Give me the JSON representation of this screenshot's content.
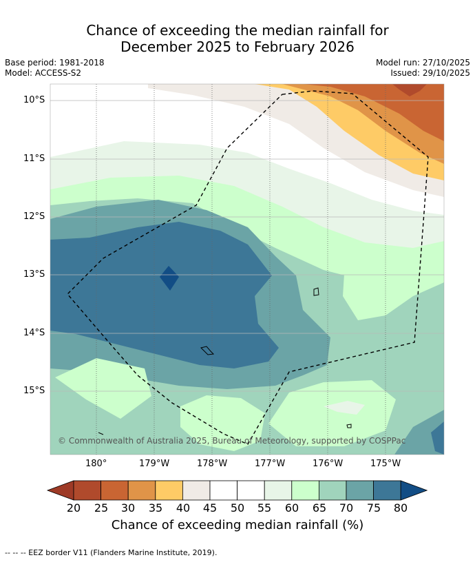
{
  "title_line1": "Chance of exceeding the median rainfall for",
  "title_line2": "December 2025 to February 2026",
  "base_period": "Base period: 1981-2018",
  "model": "Model: ACCESS-S2",
  "model_run": "Model run: 27/10/2025",
  "issued": "Issued: 29/10/2025",
  "copyright": "© Commonwealth of Australia 2025, Bureau of Meteorology, supported by COSPPac",
  "lat_labels": [
    "10°S",
    "11°S",
    "12°S",
    "13°S",
    "14°S",
    "15°S"
  ],
  "lon_labels": [
    "180°",
    "179°W",
    "178°W",
    "177°W",
    "176°W",
    "175°W"
  ],
  "colorbar": {
    "ticks": [
      "20",
      "25",
      "30",
      "35",
      "40",
      "45",
      "50",
      "55",
      "60",
      "65",
      "70",
      "75",
      "80"
    ],
    "colors": [
      "#9e3a26",
      "#b04a2c",
      "#c96533",
      "#e09448",
      "#fecb66",
      "#f0ebe6",
      "#ffffff",
      "#ffffff",
      "#e8f5e8",
      "#ccffcc",
      "#a0d4bc",
      "#6ba4a6",
      "#3d7797",
      "#124d85"
    ],
    "title": "Chance of exceeding median rainfall (%)"
  },
  "eez_note": "--  --  -- EEZ border V11 (Flanders Marine Institute, 2019)."
}
